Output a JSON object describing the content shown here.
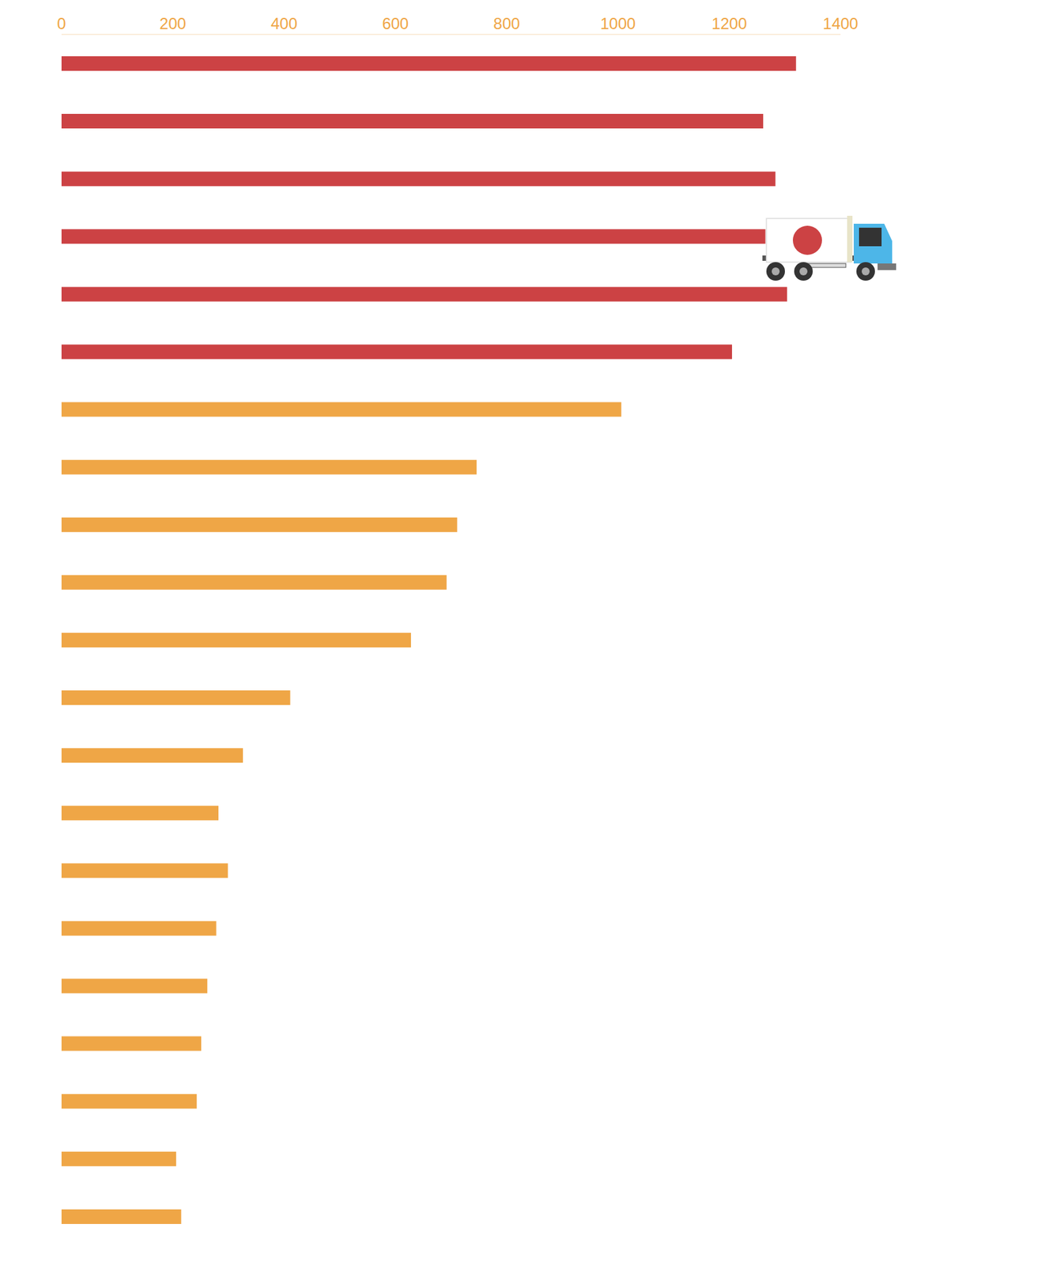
{
  "chart_data": {
    "type": "bar",
    "orientation": "horizontal",
    "categories": [
      null,
      null,
      null,
      null,
      null,
      null,
      null,
      null,
      null,
      null,
      null,
      null,
      null,
      null,
      null,
      null,
      null,
      null,
      null,
      null,
      null
    ],
    "values": [
      1320,
      1261,
      1283,
      1265,
      1304,
      1205,
      1006,
      746,
      711,
      692,
      628,
      411,
      326,
      282,
      299,
      278,
      262,
      251,
      243,
      206,
      215
    ],
    "colors": [
      "#cc4244",
      "#cc4244",
      "#cc4244",
      "#cc4244",
      "#cc4244",
      "#cc4244",
      "#efa646",
      "#efa646",
      "#efa646",
      "#efa646",
      "#efa646",
      "#efa646",
      "#efa646",
      "#efa646",
      "#efa646",
      "#efa646",
      "#efa646",
      "#efa646",
      "#efa646",
      "#efa646",
      "#efa646"
    ],
    "xlim": [
      0,
      1400
    ],
    "xticks": [
      0,
      200,
      400,
      600,
      800,
      1000,
      1200,
      1400
    ],
    "tick_labels": "x",
    "grid": false
  }
}
